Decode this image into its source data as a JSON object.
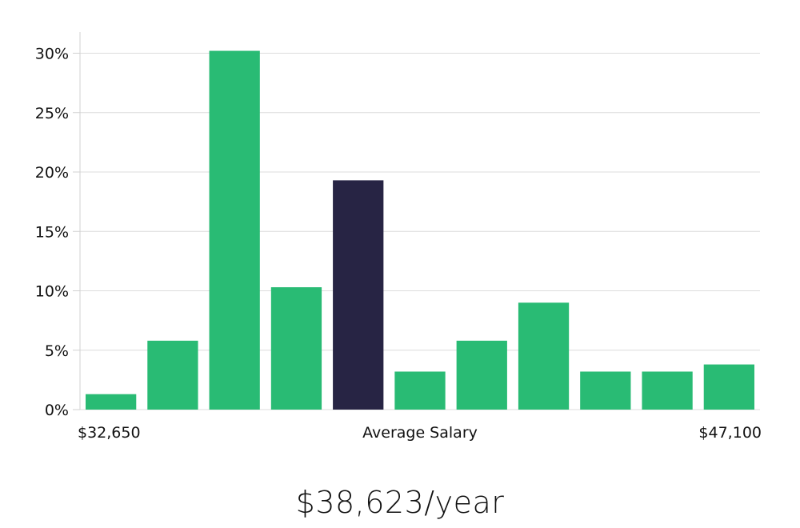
{
  "chart_data": {
    "type": "bar",
    "values": [
      1.3,
      5.8,
      30.2,
      10.3,
      19.3,
      3.2,
      5.8,
      9.0,
      3.2,
      3.2,
      3.8
    ],
    "highlight_index": 4,
    "ylim": [
      0,
      30
    ],
    "yticks": [
      0,
      5,
      10,
      15,
      20,
      25,
      30
    ],
    "ytick_labels": [
      "0%",
      "5%",
      "10%",
      "15%",
      "20%",
      "25%",
      "30%"
    ],
    "x_labels": {
      "left": "$32,650",
      "center": "Average Salary",
      "right": "$47,100"
    },
    "colors": {
      "bar": "#29bb74",
      "highlight": "#272444",
      "grid": "#dcdcdc"
    },
    "grid": true
  },
  "summary": {
    "average_salary": "$38,623/year"
  }
}
